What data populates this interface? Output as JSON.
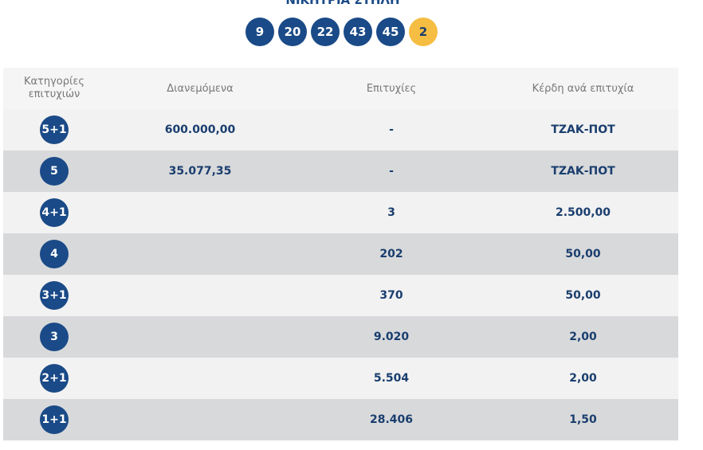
{
  "header": {
    "title": "ΝΙΚΗΤΡΙΑ ΣΤΗΛΗ",
    "numbers": [
      9,
      20,
      22,
      43,
      45
    ],
    "bonus": 2
  },
  "table": {
    "columns": [
      "Κατηγορίες επιτυχιών",
      "Διανεμόμενα",
      "Επιτυχίες",
      "Κέρδη ανά επιτυχία"
    ],
    "rows": [
      {
        "category": "5+1",
        "distributed": "600.000,00",
        "winners": "-",
        "prize": "ΤΖΑΚ-ΠΟΤ"
      },
      {
        "category": "5",
        "distributed": "35.077,35",
        "winners": "-",
        "prize": "ΤΖΑΚ-ΠΟΤ"
      },
      {
        "category": "4+1",
        "winners": "3",
        "prize": "2.500,00"
      },
      {
        "category": "4",
        "winners": "202",
        "prize": "50,00"
      },
      {
        "category": "3+1",
        "winners": "370",
        "prize": "50,00"
      },
      {
        "category": "3",
        "winners": "9.020",
        "prize": "2,00"
      },
      {
        "category": "2+1",
        "winners": "5.504",
        "prize": "2,00"
      },
      {
        "category": "1+1",
        "winners": "28.406",
        "prize": "1,50"
      }
    ]
  }
}
